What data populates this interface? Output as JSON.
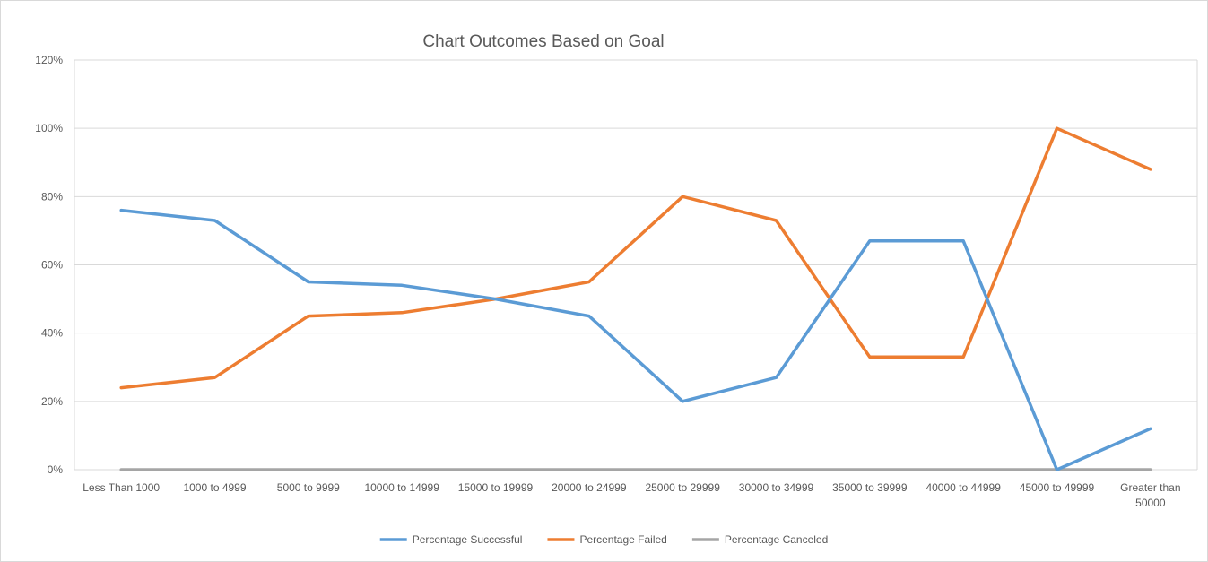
{
  "chart_data": {
    "type": "line",
    "title": "Chart Outcomes Based on Goal",
    "xlabel": "",
    "ylabel": "",
    "ylim": [
      0,
      1.2
    ],
    "y_ticks": [
      0,
      0.2,
      0.4,
      0.6,
      0.8,
      1.0,
      1.2
    ],
    "y_tick_labels": [
      "0%",
      "20%",
      "40%",
      "60%",
      "80%",
      "100%",
      "120%"
    ],
    "grid": "horizontal",
    "legend_position": "bottom",
    "categories": [
      "Less Than 1000",
      "1000 to 4999",
      "5000 to 9999",
      "10000 to 14999",
      "15000 to 19999",
      "20000 to 24999",
      "25000 to 29999",
      "30000 to 34999",
      "35000 to 39999",
      "40000 to 44999",
      "45000 to 49999",
      "Greater than 50000"
    ],
    "series": [
      {
        "name": "Percentage Successful",
        "color": "#5b9bd5",
        "values": [
          0.76,
          0.73,
          0.55,
          0.54,
          0.5,
          0.45,
          0.2,
          0.27,
          0.67,
          0.67,
          0.0,
          0.12
        ]
      },
      {
        "name": "Percentage Failed",
        "color": "#ed7d31",
        "values": [
          0.24,
          0.27,
          0.45,
          0.46,
          0.5,
          0.55,
          0.8,
          0.73,
          0.33,
          0.33,
          1.0,
          0.88
        ]
      },
      {
        "name": "Percentage Canceled",
        "color": "#a5a5a5",
        "values": [
          0,
          0,
          0,
          0,
          0,
          0,
          0,
          0,
          0,
          0,
          0,
          0
        ]
      }
    ]
  }
}
